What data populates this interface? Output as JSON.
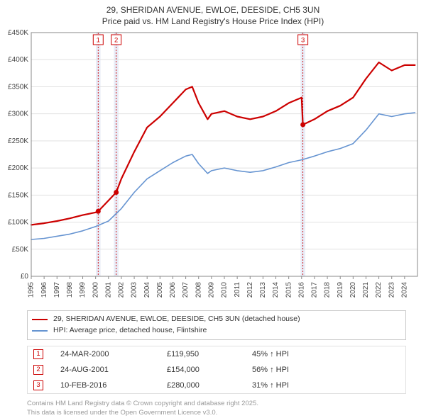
{
  "title_line1": "29, SHERIDAN AVENUE, EWLOE, DEESIDE, CH5 3UN",
  "title_line2": "Price paid vs. HM Land Registry's House Price Index (HPI)",
  "chart": {
    "type": "line",
    "plot_bg": "#ffffff",
    "grid_color": "#e1e1e1",
    "axis_color": "#888888",
    "x_years": [
      1995,
      1996,
      1997,
      1998,
      1999,
      2000,
      2001,
      2002,
      2003,
      2004,
      2005,
      2006,
      2007,
      2008,
      2009,
      2010,
      2011,
      2012,
      2013,
      2014,
      2015,
      2016,
      2017,
      2018,
      2019,
      2020,
      2021,
      2022,
      2023,
      2024
    ],
    "ylim": [
      0,
      450000
    ],
    "ytick_labels": [
      "£0",
      "£50K",
      "£100K",
      "£150K",
      "£200K",
      "£250K",
      "£300K",
      "£350K",
      "£400K",
      "£450K"
    ],
    "ytick_values": [
      0,
      50000,
      100000,
      150000,
      200000,
      250000,
      300000,
      350000,
      400000,
      450000
    ],
    "event_bar_color": "#e8ecf7",
    "event_bar_years": [
      2000.2,
      2001.6,
      2016.1
    ],
    "event_line_color": "#cc0000",
    "series": [
      {
        "name": "property",
        "color": "#cc0000",
        "width": 2.2,
        "label": "29, SHERIDAN AVENUE, EWLOE, DEESIDE, CH5 3UN (detached house)",
        "x": [
          1995,
          1996,
          1997,
          1998,
          1999,
          2000,
          2000.2,
          2001,
          2001.6,
          2002,
          2003,
          2004,
          2005,
          2006,
          2007,
          2007.5,
          2008,
          2008.7,
          2009,
          2010,
          2011,
          2012,
          2013,
          2014,
          2015,
          2016,
          2016.1,
          2017,
          2018,
          2019,
          2020,
          2021,
          2022,
          2023,
          2024,
          2024.8
        ],
        "y": [
          95000,
          98000,
          102000,
          107000,
          113000,
          118000,
          120000,
          140000,
          155000,
          180000,
          230000,
          275000,
          295000,
          320000,
          345000,
          350000,
          320000,
          290000,
          300000,
          305000,
          295000,
          290000,
          295000,
          305000,
          320000,
          330000,
          280000,
          290000,
          305000,
          315000,
          330000,
          365000,
          395000,
          380000,
          390000,
          390000
        ]
      },
      {
        "name": "hpi",
        "color": "#6694d1",
        "width": 1.6,
        "label": "HPI: Average price, detached house, Flintshire",
        "x": [
          1995,
          1996,
          1997,
          1998,
          1999,
          2000,
          2001,
          2002,
          2003,
          2004,
          2005,
          2006,
          2007,
          2007.5,
          2008,
          2008.7,
          2009,
          2010,
          2011,
          2012,
          2013,
          2014,
          2015,
          2016,
          2017,
          2018,
          2019,
          2020,
          2021,
          2022,
          2023,
          2024,
          2024.8
        ],
        "y": [
          68000,
          70000,
          74000,
          78000,
          84000,
          92000,
          102000,
          125000,
          155000,
          180000,
          195000,
          210000,
          222000,
          225000,
          208000,
          190000,
          195000,
          200000,
          195000,
          192000,
          195000,
          202000,
          210000,
          215000,
          222000,
          230000,
          236000,
          245000,
          270000,
          300000,
          295000,
          300000,
          302000
        ]
      }
    ],
    "markers": [
      {
        "year": 2000.2,
        "value": 120000,
        "color": "#cc0000"
      },
      {
        "year": 2001.6,
        "value": 155000,
        "color": "#cc0000"
      },
      {
        "year": 2016.1,
        "value": 280000,
        "color": "#cc0000"
      }
    ],
    "badges": [
      {
        "n": "1",
        "year": 2000.2
      },
      {
        "n": "2",
        "year": 2001.6
      },
      {
        "n": "3",
        "year": 2016.1
      }
    ]
  },
  "legend": {
    "items": [
      {
        "color": "#cc0000",
        "label": "29, SHERIDAN AVENUE, EWLOE, DEESIDE, CH5 3UN (detached house)"
      },
      {
        "color": "#6694d1",
        "label": "HPI: Average price, detached house, Flintshire"
      }
    ]
  },
  "sales": [
    {
      "n": "1",
      "date": "24-MAR-2000",
      "price": "£119,950",
      "pct": "45% ↑ HPI"
    },
    {
      "n": "2",
      "date": "24-AUG-2001",
      "price": "£154,000",
      "pct": "56% ↑ HPI"
    },
    {
      "n": "3",
      "date": "10-FEB-2016",
      "price": "£280,000",
      "pct": "31% ↑ HPI"
    }
  ],
  "footer_line1": "Contains HM Land Registry data © Crown copyright and database right 2025.",
  "footer_line2": "This data is licensed under the Open Government Licence v3.0."
}
